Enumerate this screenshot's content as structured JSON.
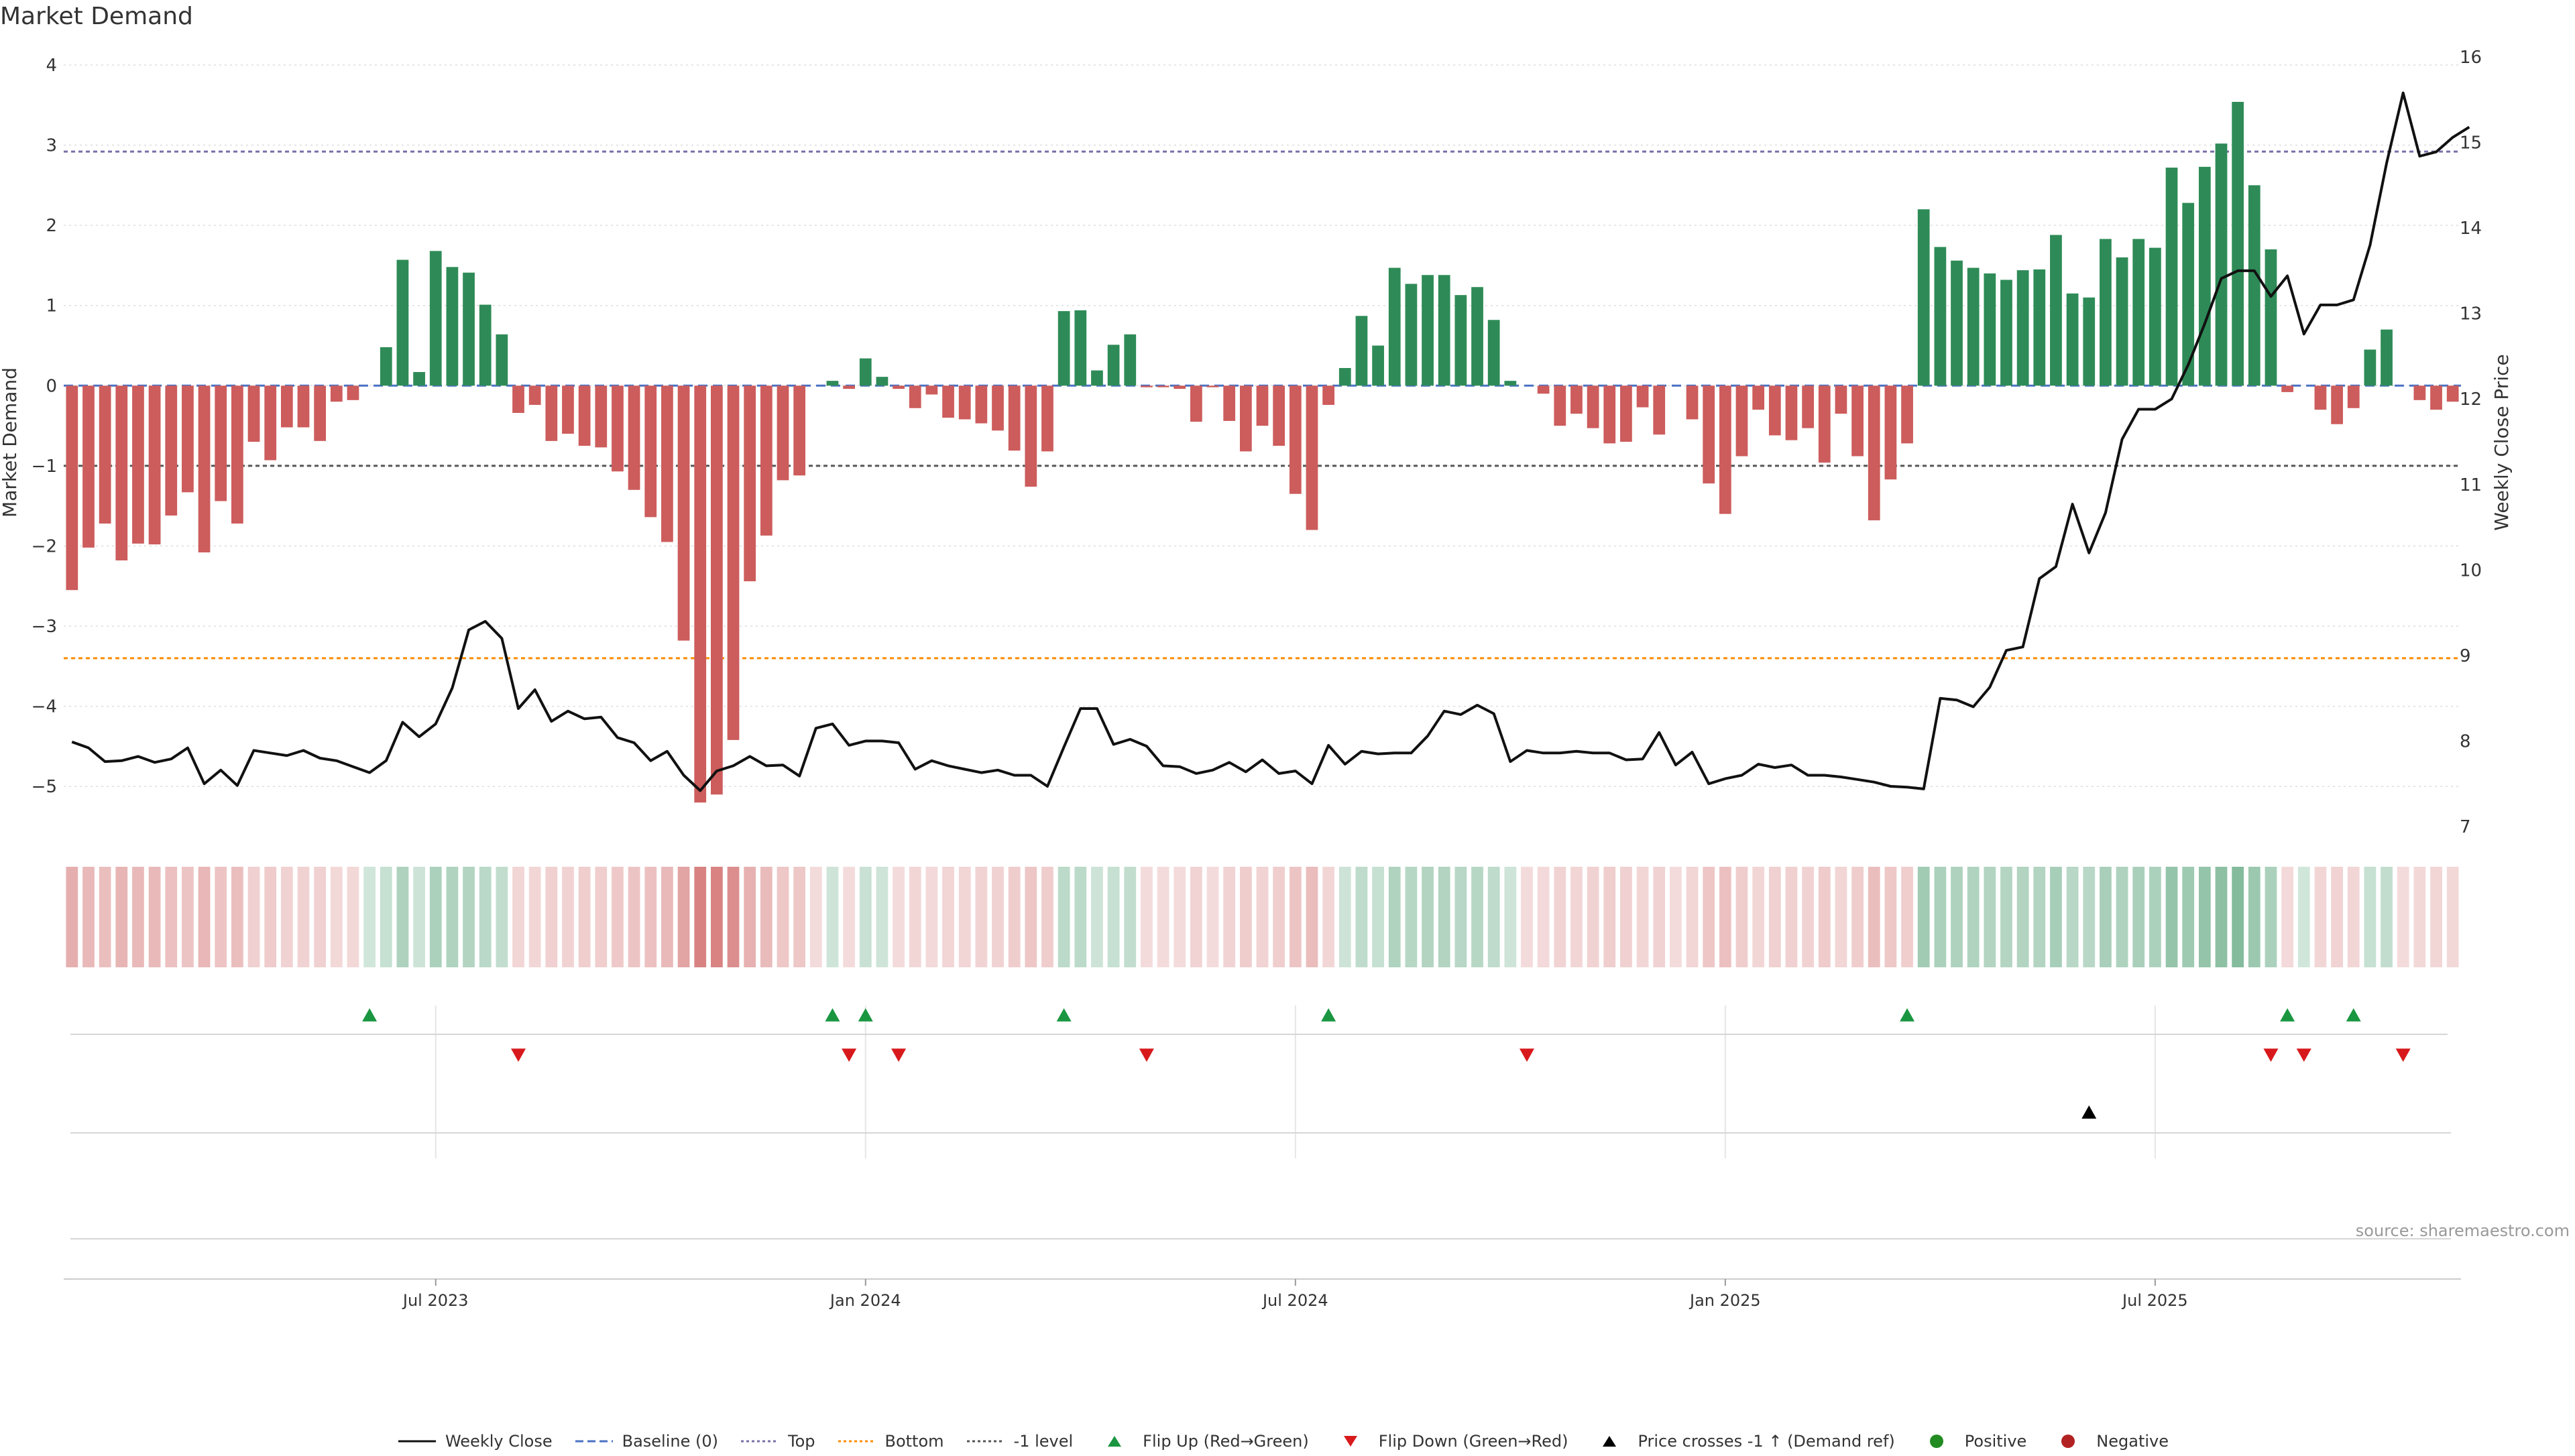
{
  "title": "Market Demand",
  "source": "source: sharemaestro.com",
  "colors": {
    "positive": "#2e8b57",
    "negative": "#cd5c5c",
    "price_line": "#111111",
    "top": "#7a6fa8",
    "bottom": "#ff8c00",
    "minus1": "#555555",
    "baseline": "#4a72c4",
    "flip_up": "#1a9641",
    "flip_down": "#d7191c",
    "cross": "#000000",
    "grid": "#dddddd"
  },
  "legend": [
    {
      "label": "Weekly Close",
      "kind": "line",
      "color": "#111111"
    },
    {
      "label": "Baseline (0)",
      "kind": "dash",
      "color": "#4a72c4"
    },
    {
      "label": "Top",
      "kind": "dot",
      "color": "#7a6fa8"
    },
    {
      "label": "Bottom",
      "kind": "dot",
      "color": "#ff8c00"
    },
    {
      "label": "-1 level",
      "kind": "dot",
      "color": "#555555"
    },
    {
      "label": "Flip Up (Red→Green)",
      "kind": "tri-up",
      "color": "#1a9641"
    },
    {
      "label": "Flip Down (Green→Red)",
      "kind": "tri-down",
      "color": "#d7191c"
    },
    {
      "label": "Price crosses -1 ↑ (Demand ref)",
      "kind": "tri-up",
      "color": "#000000"
    },
    {
      "label": "Positive",
      "kind": "circle",
      "color": "#228b22"
    },
    {
      "label": "Negative",
      "kind": "circle",
      "color": "#b22222"
    }
  ],
  "chart_data": {
    "type": "bar",
    "title": "Market Demand",
    "ylabel": "Market Demand",
    "y2label": "Weekly Close Price",
    "ylim": [
      -5.6,
      4.1
    ],
    "y_ticks": [
      4,
      3,
      2,
      1,
      0,
      -1,
      -2,
      -3,
      -4,
      -5
    ],
    "y_tick_labels": [
      "4",
      "3",
      "2",
      "1",
      "0",
      "−1",
      "−2",
      "−3",
      "−4",
      "−5"
    ],
    "y2lim": [
      7,
      16
    ],
    "y2_ticks": [
      16,
      15,
      14,
      13,
      12,
      11,
      10,
      9,
      8,
      7
    ],
    "x_tick_labels": [
      "Jul 2023",
      "Jan 2024",
      "Jul 2024",
      "Jan 2025",
      "Jul 2025"
    ],
    "x_tick_week_index": [
      22,
      48,
      74,
      100,
      126
    ],
    "levels": {
      "top": 2.92,
      "bottom": -3.4,
      "minus_one": -1,
      "baseline": 0
    },
    "series": [
      {
        "name": "Market Demand",
        "values": [
          -2.55,
          -2.02,
          -1.72,
          -2.18,
          -1.97,
          -1.98,
          -1.62,
          -1.33,
          -2.08,
          -1.44,
          -1.72,
          -0.7,
          -0.93,
          -0.52,
          -0.52,
          -0.69,
          -0.2,
          -0.18,
          0,
          0.48,
          1.57,
          0.17,
          1.68,
          1.48,
          1.41,
          1.01,
          0.64,
          -0.34,
          -0.24,
          -0.69,
          -0.6,
          -0.75,
          -0.77,
          -1.07,
          -1.3,
          -1.64,
          -1.95,
          -3.18,
          -5.2,
          -5.1,
          -4.42,
          -2.44,
          -1.87,
          -1.18,
          -1.12,
          0,
          0.06,
          -0.04,
          0.34,
          0.11,
          -0.04,
          -0.28,
          -0.11,
          -0.4,
          -0.42,
          -0.47,
          -0.56,
          -0.81,
          -1.26,
          -0.82,
          0.93,
          0.94,
          0.19,
          0.51,
          0.64,
          -0.02,
          -0.02,
          -0.04,
          -0.45,
          -0.02,
          -0.44,
          -0.82,
          -0.5,
          -0.75,
          -1.35,
          -1.8,
          -0.24,
          0.22,
          0.87,
          0.5,
          1.47,
          1.27,
          1.38,
          1.38,
          1.13,
          1.23,
          0.82,
          0.06,
          0,
          -0.1,
          -0.5,
          -0.35,
          -0.53,
          -0.72,
          -0.7,
          -0.27,
          -0.61,
          0,
          -0.42,
          -1.22,
          -1.6,
          -0.88,
          -0.3,
          -0.62,
          -0.68,
          -0.53,
          -0.96,
          -0.35,
          -0.88,
          -1.68,
          -1.17,
          -0.72,
          2.2,
          1.73,
          1.56,
          1.47,
          1.4,
          1.32,
          1.44,
          1.45,
          1.88,
          1.15,
          1.1,
          1.83,
          1.6,
          1.83,
          1.72,
          2.72,
          2.28,
          2.73,
          3.02,
          3.54,
          2.5,
          1.7,
          -0.08,
          0,
          -0.3,
          -0.48,
          -0.28,
          0.45,
          0.7,
          0,
          -0.18,
          -0.3,
          -0.2
        ]
      },
      {
        "name": "Weekly Close",
        "axis": "right",
        "values": [
          7.99,
          7.92,
          7.76,
          7.77,
          7.82,
          7.75,
          7.79,
          7.92,
          7.5,
          7.66,
          7.48,
          7.89,
          7.86,
          7.83,
          7.89,
          7.8,
          7.77,
          7.7,
          7.63,
          7.77,
          8.22,
          8.05,
          8.2,
          8.62,
          9.3,
          9.4,
          9.2,
          8.38,
          8.6,
          8.23,
          8.35,
          8.26,
          8.28,
          8.04,
          7.98,
          7.77,
          7.88,
          7.6,
          7.42,
          7.65,
          7.71,
          7.82,
          7.71,
          7.72,
          7.59,
          8.15,
          8.2,
          7.95,
          8,
          8,
          7.98,
          7.67,
          7.77,
          7.71,
          7.67,
          7.63,
          7.66,
          7.6,
          7.6,
          7.47,
          7.93,
          8.38,
          8.38,
          7.96,
          8.02,
          7.94,
          7.71,
          7.7,
          7.62,
          7.66,
          7.75,
          7.64,
          7.78,
          7.62,
          7.65,
          7.5,
          7.95,
          7.73,
          7.88,
          7.85,
          7.86,
          7.86,
          8.06,
          8.35,
          8.31,
          8.42,
          8.32,
          7.76,
          7.89,
          7.86,
          7.86,
          7.88,
          7.86,
          7.86,
          7.78,
          7.79,
          8.1,
          7.72,
          7.87,
          7.5,
          7.56,
          7.6,
          7.73,
          7.69,
          7.72,
          7.6,
          7.6,
          7.58,
          7.55,
          7.52,
          7.47,
          7.46,
          7.44,
          8.5,
          8.48,
          8.4,
          8.63,
          9.06,
          9.1,
          9.9,
          10.04,
          10.77,
          10.2,
          10.67,
          11.53,
          11.88,
          11.88,
          12,
          12.4,
          12.88,
          13.41,
          13.5,
          13.5,
          13.2,
          13.44,
          12.76,
          13.1,
          13.1,
          13.16,
          13.8,
          14.76,
          15.58,
          14.84,
          14.89,
          15.06,
          15.18
        ]
      }
    ],
    "color_strip": [
      "neg",
      "neg",
      "neg",
      "neg",
      "neg",
      "neg",
      "neg",
      "neg",
      "neg",
      "neg",
      "neg",
      "neg",
      "neg",
      "neg",
      "neg",
      "neg",
      "neg",
      "neg",
      "pos",
      "pos",
      "pos",
      "pos",
      "pos",
      "pos",
      "pos",
      "pos",
      "pos",
      "neg",
      "neg",
      "neg",
      "neg",
      "neg",
      "neg",
      "neg",
      "neg",
      "neg",
      "neg",
      "neg",
      "neg",
      "neg",
      "neg",
      "neg",
      "neg",
      "neg",
      "neg",
      "neg",
      "pos",
      "neg",
      "pos",
      "pos",
      "neg",
      "neg",
      "neg",
      "neg",
      "neg",
      "neg",
      "neg",
      "neg",
      "neg",
      "neg",
      "pos",
      "pos",
      "pos",
      "pos",
      "pos",
      "neg",
      "neg",
      "neg",
      "neg",
      "neg",
      "neg",
      "neg",
      "neg",
      "neg",
      "neg",
      "neg",
      "neg",
      "pos",
      "pos",
      "pos",
      "pos",
      "pos",
      "pos",
      "pos",
      "pos",
      "pos",
      "pos",
      "pos",
      "neg",
      "neg",
      "neg",
      "neg",
      "neg",
      "neg",
      "neg",
      "neg",
      "neg",
      "neg",
      "neg",
      "neg",
      "neg",
      "neg",
      "neg",
      "neg",
      "neg",
      "neg",
      "neg",
      "neg",
      "neg",
      "neg",
      "neg",
      "neg",
      "pos",
      "pos",
      "pos",
      "pos",
      "pos",
      "pos",
      "pos",
      "pos",
      "pos",
      "pos",
      "pos",
      "pos",
      "pos",
      "pos",
      "pos",
      "pos",
      "pos",
      "pos",
      "pos",
      "pos",
      "pos",
      "pos",
      "neg",
      "pos",
      "neg",
      "neg",
      "neg",
      "pos",
      "pos",
      "neg",
      "neg",
      "neg",
      "neg"
    ],
    "flip_up_weeks": [
      18,
      46,
      48,
      60,
      76,
      111,
      134,
      138
    ],
    "flip_down_weeks": [
      27,
      47,
      50,
      65,
      88,
      133,
      135,
      141
    ],
    "cross_weeks": [
      122
    ]
  }
}
